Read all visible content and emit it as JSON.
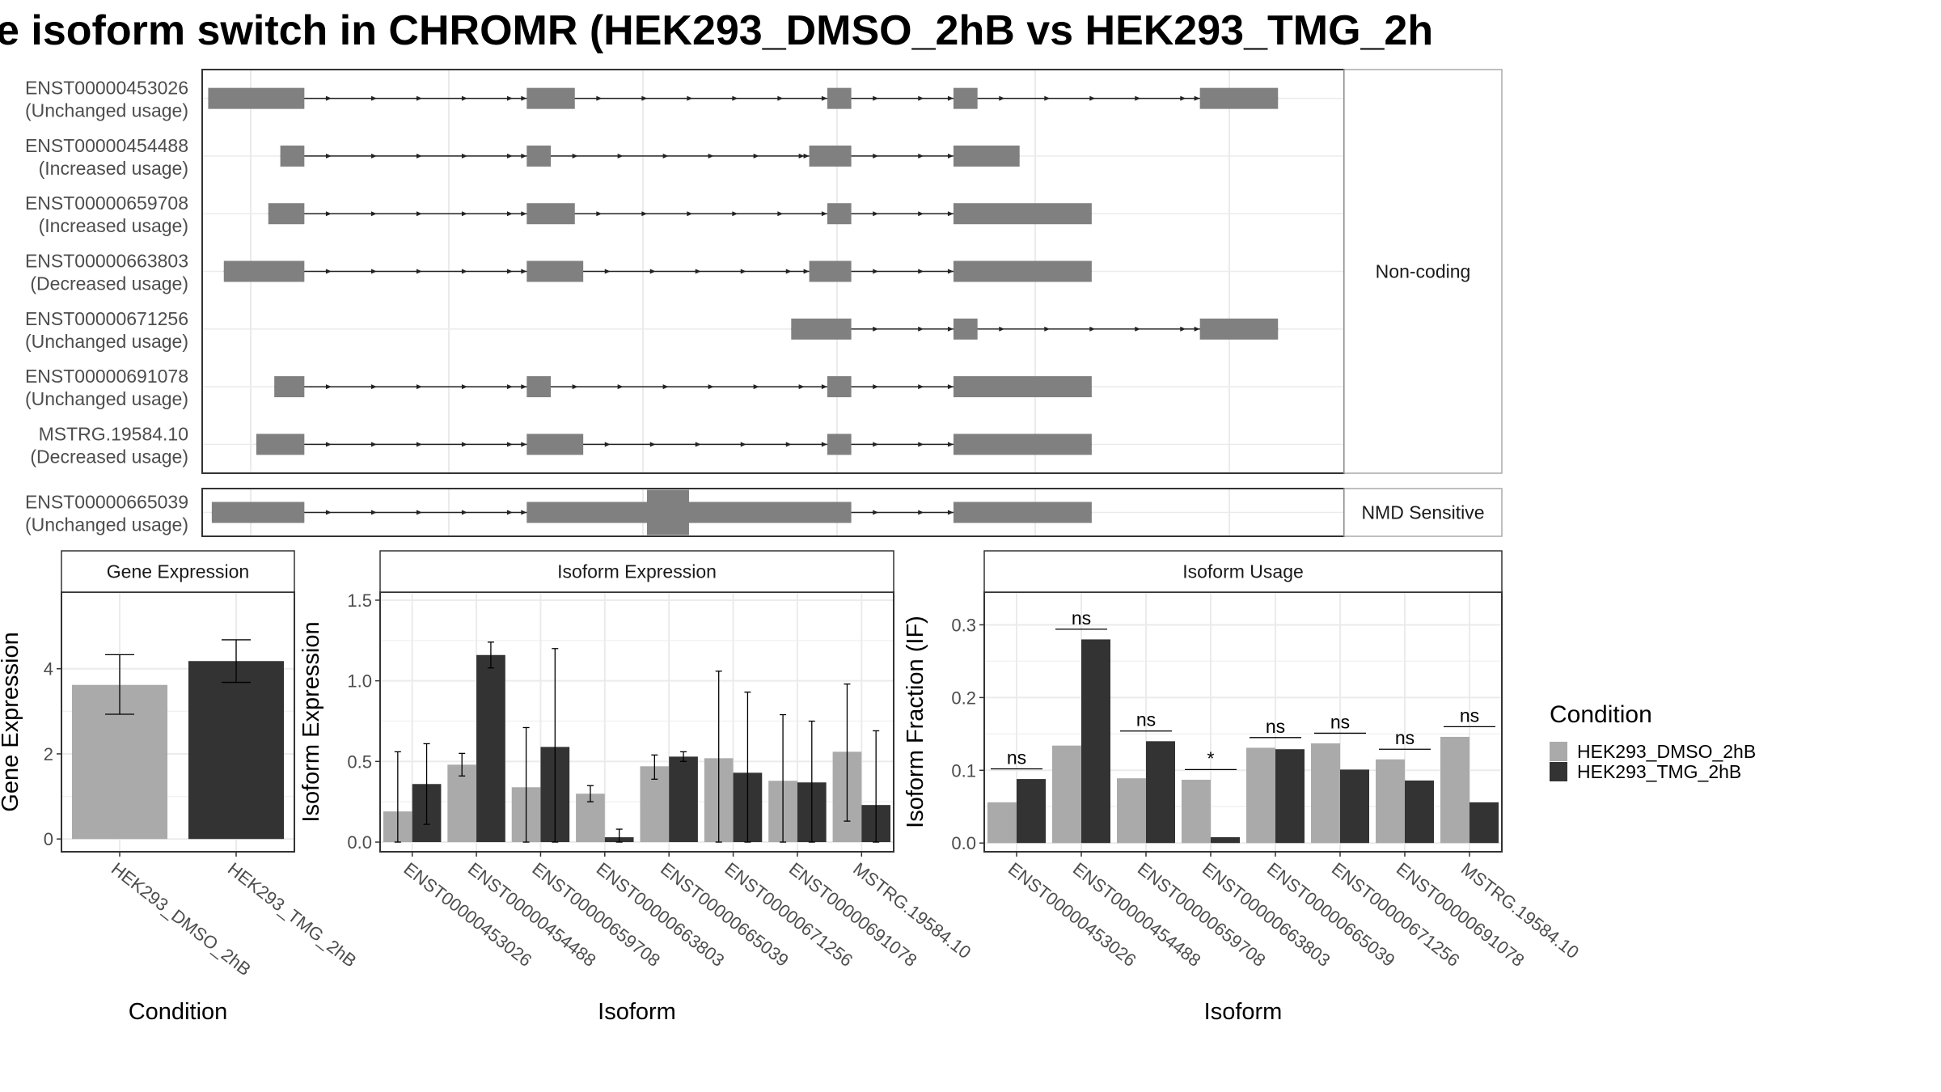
{
  "title": "e isoform switch in CHROMR (HEK293_DMSO_2hB vs HEK293_TMG_2h",
  "colors": {
    "exon": "#808080",
    "dmso": "#aaaaaa",
    "tmg": "#333333",
    "grid": "#ebebeb",
    "frame": "#333333",
    "strip_bg": "#ffffff"
  },
  "structure": {
    "groups": [
      {
        "label": "Non-coding",
        "transcripts": [
          {
            "id": "ENST00000453026",
            "usage": "(Unchanged usage)",
            "exons": [
              [
                0.5,
                8.5
              ],
              [
                27,
                31
              ],
              [
                52,
                54
              ],
              [
                62.5,
                64.5
              ],
              [
                83,
                89.5
              ]
            ]
          },
          {
            "id": "ENST00000454488",
            "usage": "(Increased usage)",
            "exons": [
              [
                6.5,
                8.5
              ],
              [
                27,
                29
              ],
              [
                50.5,
                54
              ],
              [
                62.5,
                68
              ]
            ]
          },
          {
            "id": "ENST00000659708",
            "usage": "(Increased usage)",
            "exons": [
              [
                5.5,
                8.5
              ],
              [
                27,
                31
              ],
              [
                52,
                54
              ],
              [
                62.5,
                74
              ]
            ]
          },
          {
            "id": "ENST00000663803",
            "usage": "(Decreased usage)",
            "exons": [
              [
                1.8,
                8.5
              ],
              [
                27,
                31.7
              ],
              [
                50.5,
                54
              ],
              [
                62.5,
                74
              ]
            ]
          },
          {
            "id": "ENST00000671256",
            "usage": "(Unchanged usage)",
            "exons": [
              [
                49,
                54
              ],
              [
                62.5,
                64.5
              ],
              [
                83,
                89.5
              ]
            ]
          },
          {
            "id": "ENST00000691078",
            "usage": "(Unchanged usage)",
            "exons": [
              [
                6,
                8.5
              ],
              [
                27,
                29
              ],
              [
                52,
                54
              ],
              [
                62.5,
                74
              ]
            ]
          },
          {
            "id": "MSTRG.19584.10",
            "usage": "(Decreased usage)",
            "exons": [
              [
                4.5,
                8.5
              ],
              [
                27,
                31.7
              ],
              [
                52,
                54
              ],
              [
                62.5,
                74
              ]
            ]
          }
        ]
      },
      {
        "label": "NMD Sensitive",
        "transcripts": [
          {
            "id": "ENST00000665039",
            "usage": "(Unchanged usage)",
            "exons": [
              [
                0.8,
                8.5
              ],
              [
                27,
                54
              ],
              [
                62.5,
                74
              ]
            ],
            "cds": [
              [
                37,
                40.5
              ]
            ]
          }
        ]
      }
    ]
  },
  "chart_data": [
    {
      "type": "bar",
      "title": "Gene Expression",
      "xlabel": "Condition",
      "ylabel": "Gene Expression",
      "ylim": [
        -0.3,
        5.8
      ],
      "yticks": [
        0,
        2,
        4
      ],
      "categories": [
        "HEK293_DMSO_2hB",
        "HEK293_TMG_2hB"
      ],
      "values": [
        3.62,
        4.18
      ],
      "error": [
        [
          2.93,
          4.33
        ],
        [
          3.68,
          4.68
        ]
      ]
    },
    {
      "type": "bar",
      "title": "Isoform Expression",
      "xlabel": "Isoform",
      "ylabel": "Isoform Expression",
      "ylim": [
        -0.06,
        1.55
      ],
      "yticks": [
        0.0,
        0.5,
        1.0,
        1.5
      ],
      "categories": [
        "ENST00000453026",
        "ENST00000454488",
        "ENST00000659708",
        "ENST00000663803",
        "ENST00000665039",
        "ENST00000671256",
        "ENST00000691078",
        "MSTRG.19584.10"
      ],
      "series": [
        {
          "name": "HEK293_DMSO_2hB",
          "values": [
            0.19,
            0.48,
            0.34,
            0.3,
            0.47,
            0.52,
            0.38,
            0.56
          ],
          "error": [
            [
              0.0,
              0.56
            ],
            [
              0.41,
              0.55
            ],
            [
              0.0,
              0.71
            ],
            [
              0.25,
              0.35
            ],
            [
              0.39,
              0.54
            ],
            [
              0.0,
              1.06
            ],
            [
              0.0,
              0.79
            ],
            [
              0.13,
              0.98
            ]
          ]
        },
        {
          "name": "HEK293_TMG_2hB",
          "values": [
            0.36,
            1.16,
            0.59,
            0.03,
            0.53,
            0.43,
            0.37,
            0.23
          ],
          "error": [
            [
              0.11,
              0.61
            ],
            [
              1.08,
              1.24
            ],
            [
              0.0,
              1.2
            ],
            [
              0.0,
              0.08
            ],
            [
              0.5,
              0.56
            ],
            [
              0.0,
              0.93
            ],
            [
              0.0,
              0.75
            ],
            [
              0.0,
              0.69
            ]
          ]
        }
      ]
    },
    {
      "type": "bar",
      "title": "Isoform Usage",
      "xlabel": "Isoform",
      "ylabel": "Isoform Fraction (IF)",
      "ylim": [
        -0.012,
        0.345
      ],
      "yticks": [
        0.0,
        0.1,
        0.2,
        0.3
      ],
      "categories": [
        "ENST00000453026",
        "ENST00000454488",
        "ENST00000659708",
        "ENST00000663803",
        "ENST00000665039",
        "ENST00000671256",
        "ENST00000691078",
        "MSTRG.19584.10"
      ],
      "series": [
        {
          "name": "HEK293_DMSO_2hB",
          "values": [
            0.056,
            0.134,
            0.089,
            0.087,
            0.131,
            0.137,
            0.115,
            0.146
          ]
        },
        {
          "name": "HEK293_TMG_2hB",
          "values": [
            0.088,
            0.28,
            0.14,
            0.008,
            0.129,
            0.101,
            0.086,
            0.056
          ]
        }
      ],
      "significance": [
        "ns",
        "ns",
        "ns",
        "*",
        "ns",
        "ns",
        "ns",
        "ns"
      ],
      "sig_height": [
        0.102,
        0.294,
        0.154,
        0.101,
        0.145,
        0.151,
        0.129,
        0.16
      ]
    }
  ],
  "legend": {
    "title": "Condition",
    "items": [
      "HEK293_DMSO_2hB",
      "HEK293_TMG_2hB"
    ]
  }
}
